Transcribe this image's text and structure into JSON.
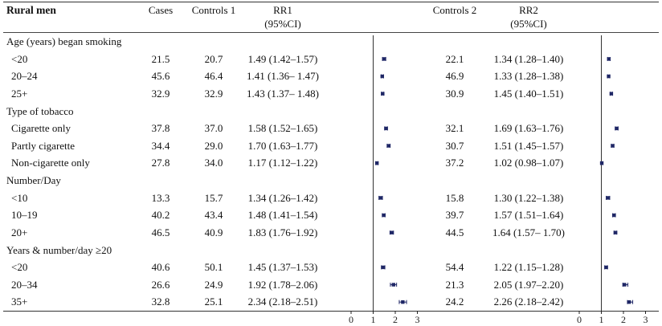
{
  "colors": {
    "marker": "#1f2766",
    "axis": "#222222",
    "ref_line": "#333333"
  },
  "table": {
    "title": "Rural men",
    "header": {
      "cases": "Cases",
      "controls1": "Controls 1",
      "rr1": "RR1",
      "rr1_sub": "(95%CI)",
      "controls2": "Controls 2",
      "rr2": "RR2",
      "rr2_sub": "(95%CI)"
    },
    "sections": [
      {
        "label": "Age (years) began smoking",
        "rows": [
          {
            "label": "<20",
            "cases": "21.5",
            "controls1": "20.7",
            "rr1_text": "1.49 (1.42–1.57)",
            "controls2": "22.1",
            "rr2_text": "1.34 (1.28–1.40)"
          },
          {
            "label": "20–24",
            "cases": "45.6",
            "controls1": "46.4",
            "rr1_text": "1.41 (1.36– 1.47)",
            "controls2": "46.9",
            "rr2_text": "1.33 (1.28–1.38)"
          },
          {
            "label": "25+",
            "cases": "32.9",
            "controls1": "32.9",
            "rr1_text": "1.43 (1.37– 1.48)",
            "controls2": "30.9",
            "rr2_text": "1.45 (1.40–1.51)"
          }
        ]
      },
      {
        "label": "Type of tobacco",
        "rows": [
          {
            "label": "Cigarette only",
            "cases": "37.8",
            "controls1": "37.0",
            "rr1_text": "1.58 (1.52–1.65)",
            "controls2": "32.1",
            "rr2_text": "1.69 (1.63–1.76)"
          },
          {
            "label": "Partly cigarette",
            "cases": "34.4",
            "controls1": "29.0",
            "rr1_text": "1.70 (1.63–1.77)",
            "controls2": "30.7",
            "rr2_text": "1.51 (1.45–1.57)"
          },
          {
            "label": "Non-cigarette only",
            "cases": "27.8",
            "controls1": "34.0",
            "rr1_text": "1.17 (1.12–1.22)",
            "controls2": "37.2",
            "rr2_text": "1.02 (0.98–1.07)"
          }
        ]
      },
      {
        "label": "Number/Day",
        "rows": [
          {
            "label": "<10",
            "cases": "13.3",
            "controls1": "15.7",
            "rr1_text": "1.34 (1.26–1.42)",
            "controls2": "15.8",
            "rr2_text": "1.30 (1.22–1.38)"
          },
          {
            "label": "10–19",
            "cases": "40.2",
            "controls1": "43.4",
            "rr1_text": "1.48 (1.41–1.54)",
            "controls2": "39.7",
            "rr2_text": "1.57 (1.51–1.64)"
          },
          {
            "label": "20+",
            "cases": "46.5",
            "controls1": "40.9",
            "rr1_text": "1.83 (1.76–1.92)",
            "controls2": "44.5",
            "rr2_text": "1.64 (1.57– 1.70)"
          }
        ]
      },
      {
        "label": "Years & number/day ≥20",
        "rows": [
          {
            "label": "<20",
            "cases": "40.6",
            "controls1": "50.1",
            "rr1_text": "1.45 (1.37–1.53)",
            "controls2": "54.4",
            "rr2_text": "1.22 (1.15–1.28)"
          },
          {
            "label": "20–34",
            "cases": "26.6",
            "controls1": "24.9",
            "rr1_text": "1.92 (1.78–2.06)",
            "controls2": "21.3",
            "rr2_text": "2.05 (1.97–2.20)"
          },
          {
            "label": "35+",
            "cases": "32.8",
            "controls1": "25.1",
            "rr1_text": "2.34 (2.18–2.51)",
            "controls2": "24.2",
            "rr2_text": "2.26 (2.18–2.42)"
          }
        ]
      }
    ]
  },
  "chart_data": [
    {
      "type": "scatter",
      "title": "RR1 (95%CI) forest plot",
      "xlabel": "",
      "ylabel": "",
      "xlim": [
        0,
        3
      ],
      "x_ticks": [
        0,
        1,
        2,
        3
      ],
      "reference_line_x": 1,
      "grid": false,
      "categories": [
        "<20",
        "20–24",
        "25+",
        "Cigarette only",
        "Partly cigarette",
        "Non-cigarette only",
        "<10",
        "10–19",
        "20+",
        "<20",
        "20–34",
        "35+"
      ],
      "series": [
        {
          "name": "RR1",
          "values": [
            1.49,
            1.41,
            1.43,
            1.58,
            1.7,
            1.17,
            1.34,
            1.48,
            1.83,
            1.45,
            1.92,
            2.34
          ],
          "ci_low": [
            1.42,
            1.36,
            1.37,
            1.52,
            1.63,
            1.12,
            1.26,
            1.41,
            1.76,
            1.37,
            1.78,
            2.18
          ],
          "ci_high": [
            1.57,
            1.47,
            1.48,
            1.65,
            1.77,
            1.22,
            1.42,
            1.54,
            1.92,
            1.53,
            2.06,
            2.51
          ]
        }
      ]
    },
    {
      "type": "scatter",
      "title": "RR2 (95%CI) forest plot",
      "xlabel": "",
      "ylabel": "",
      "xlim": [
        0,
        3
      ],
      "x_ticks": [
        0,
        1,
        2,
        3
      ],
      "reference_line_x": 1,
      "grid": false,
      "categories": [
        "<20",
        "20–24",
        "25+",
        "Cigarette only",
        "Partly cigarette",
        "Non-cigarette only",
        "<10",
        "10–19",
        "20+",
        "<20",
        "20–34",
        "35+"
      ],
      "series": [
        {
          "name": "RR2",
          "values": [
            1.34,
            1.33,
            1.45,
            1.69,
            1.51,
            1.02,
            1.3,
            1.57,
            1.64,
            1.22,
            2.05,
            2.26
          ],
          "ci_low": [
            1.28,
            1.28,
            1.4,
            1.63,
            1.45,
            0.98,
            1.22,
            1.51,
            1.57,
            1.15,
            1.97,
            2.18
          ],
          "ci_high": [
            1.4,
            1.38,
            1.51,
            1.76,
            1.57,
            1.07,
            1.38,
            1.64,
            1.7,
            1.28,
            2.2,
            2.42
          ]
        }
      ]
    }
  ]
}
